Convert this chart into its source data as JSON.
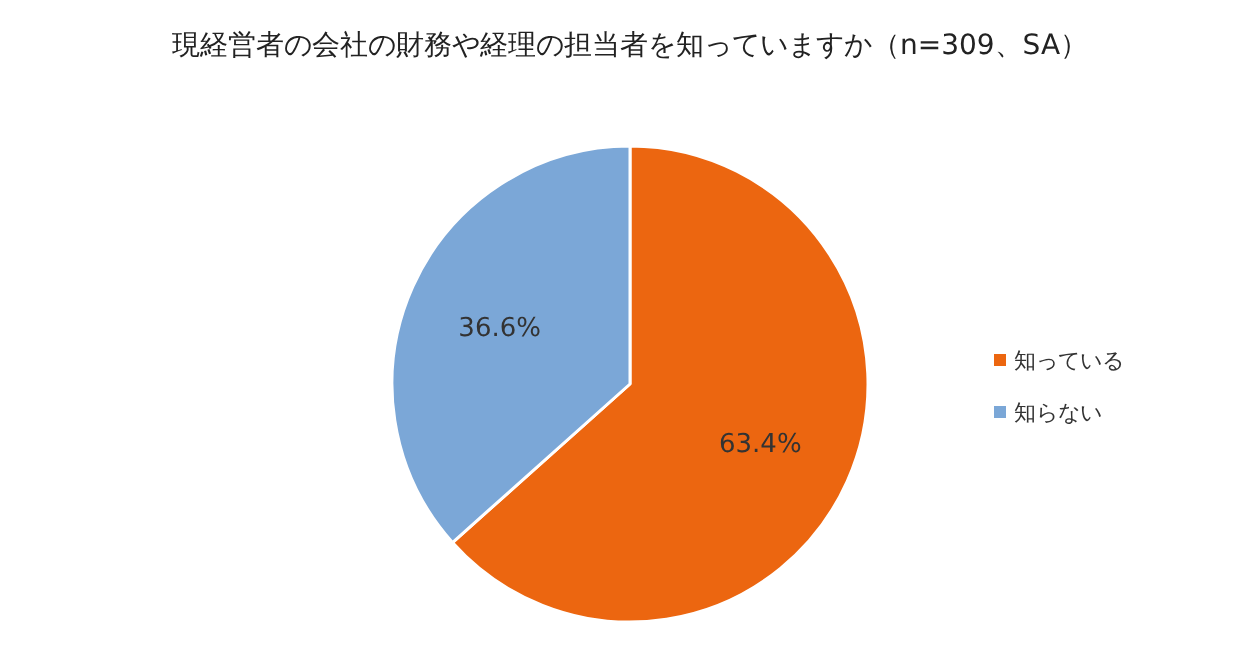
{
  "chart_data": {
    "type": "pie",
    "title": "現経営者の会社の財務や経理の担当者を知っていますか（n=309、SA）",
    "categories": [
      "知っている",
      "知らない"
    ],
    "values": [
      63.4,
      36.6
    ],
    "colors": [
      "#ec6610",
      "#7ba7d7"
    ],
    "value_labels": [
      "63.4%",
      "36.6%"
    ],
    "legend": "right"
  }
}
